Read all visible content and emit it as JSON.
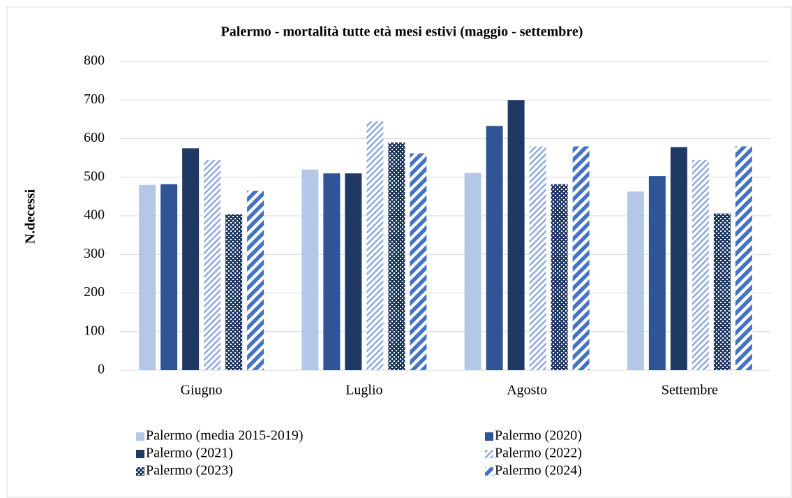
{
  "chart_data": {
    "type": "bar",
    "title": "Palermo - mortalità tutte età  mesi estivi (maggio - settembre)",
    "y_label": "N.decessi",
    "categories": [
      "Giugno",
      "Luglio",
      "Agosto",
      "Settembre"
    ],
    "series": [
      {
        "name": "Palermo (media 2015-2019)",
        "color": "#b4c7e7",
        "pattern": "solid",
        "values": [
          480,
          520,
          511,
          463
        ]
      },
      {
        "name": "Palermo (2020)",
        "color": "#2f5597",
        "pattern": "solid",
        "values": [
          482,
          510,
          633,
          503
        ]
      },
      {
        "name": "Palermo (2021)",
        "color": "#1f3864",
        "pattern": "solid",
        "values": [
          575,
          510,
          700,
          578
        ]
      },
      {
        "name": "Palermo (2022)",
        "color": "#8faadc",
        "pattern": "light-diagonal",
        "values": [
          545,
          645,
          580,
          545
        ]
      },
      {
        "name": "Palermo (2023)",
        "color": "#1f3864",
        "pattern": "checker",
        "values": [
          404,
          590,
          482,
          406
        ]
      },
      {
        "name": "Palermo (2024)",
        "color": "#4472c4",
        "pattern": "wide-diagonal",
        "values": [
          465,
          562,
          580,
          580
        ]
      }
    ],
    "ylim": [
      0,
      800
    ],
    "yticks": [
      0,
      100,
      200,
      300,
      400,
      500,
      600,
      700,
      800
    ],
    "grid": true,
    "legend": "bottom"
  }
}
